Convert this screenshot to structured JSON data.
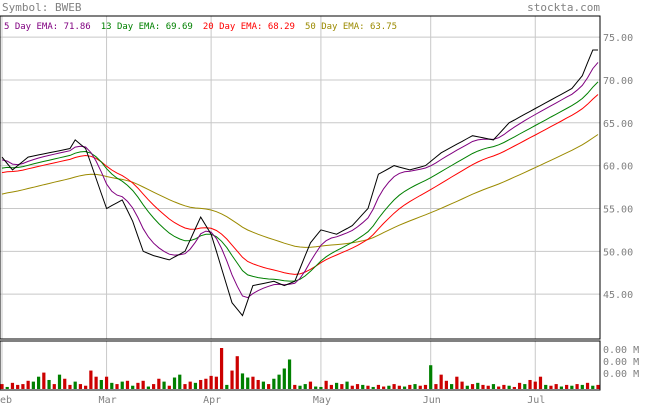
{
  "header": {
    "symbol_label": "Symbol: BWEB",
    "brand": "stockta.com"
  },
  "colors": {
    "price": "#000000",
    "ema5": "#800080",
    "ema13": "#008000",
    "ema20": "#ff0000",
    "ema50": "#9b8a00",
    "grid": "#c8c8c8",
    "vol_up": "#008000",
    "vol_down": "#cc0000"
  },
  "chart_data": {
    "type": "line",
    "legend": [
      {
        "label": "5 Day EMA: 71.86",
        "color": "#800080"
      },
      {
        "label": "13 Day EMA: 69.69",
        "color": "#008000"
      },
      {
        "label": "20 Day EMA: 68.29",
        "color": "#ff0000"
      },
      {
        "label": "50 Day EMA: 63.75",
        "color": "#9b8a00"
      }
    ],
    "y_ticks": [
      "75.00",
      "70.00",
      "65.00",
      "60.00",
      "55.00",
      "50.00",
      "45.00"
    ],
    "y_tick_values": [
      75,
      70,
      65,
      60,
      55,
      50,
      45
    ],
    "ylim": [
      40,
      77
    ],
    "x_ticks": [
      "Feb",
      "Mar",
      "Apr",
      "May",
      "Jun",
      "Jul"
    ],
    "x_tick_index": [
      0,
      20,
      40,
      61,
      82,
      102
    ],
    "n_points": 115,
    "close_keypoints": [
      [
        0,
        61.0
      ],
      [
        2,
        59.5
      ],
      [
        5,
        61.0
      ],
      [
        9,
        61.5
      ],
      [
        13,
        62.0
      ],
      [
        14,
        63.0
      ],
      [
        16,
        62.0
      ],
      [
        18,
        58.5
      ],
      [
        20,
        55.0
      ],
      [
        23,
        56.0
      ],
      [
        25,
        53.5
      ],
      [
        27,
        50.0
      ],
      [
        29,
        49.5
      ],
      [
        32,
        49.0
      ],
      [
        35,
        50.0
      ],
      [
        38,
        54.0
      ],
      [
        40,
        52.0
      ],
      [
        44,
        44.0
      ],
      [
        46,
        42.5
      ],
      [
        48,
        46.0
      ],
      [
        52,
        46.5
      ],
      [
        54,
        46.0
      ],
      [
        56,
        46.5
      ],
      [
        59,
        51.0
      ],
      [
        61,
        52.5
      ],
      [
        64,
        52.0
      ],
      [
        67,
        53.0
      ],
      [
        70,
        55.0
      ],
      [
        72,
        59.0
      ],
      [
        75,
        60.0
      ],
      [
        78,
        59.5
      ],
      [
        81,
        60.0
      ],
      [
        84,
        61.5
      ],
      [
        87,
        62.5
      ],
      [
        90,
        63.5
      ],
      [
        94,
        63.0
      ],
      [
        97,
        65.0
      ],
      [
        100,
        66.0
      ],
      [
        103,
        67.0
      ],
      [
        106,
        68.0
      ],
      [
        109,
        69.0
      ],
      [
        111,
        70.5
      ],
      [
        113,
        73.5
      ],
      [
        114,
        73.5
      ]
    ],
    "ema_start": {
      "ema5": 60.5,
      "ema13": 59.5,
      "ema20": 59.0,
      "ema50": 56.5
    },
    "volume_labels": [
      "0.00 M",
      "0.00 M",
      "0.00 M"
    ],
    "volume": [
      {
        "v": 0.12,
        "up": false
      },
      {
        "v": 0.05,
        "up": true
      },
      {
        "v": 0.15,
        "up": false
      },
      {
        "v": 0.1,
        "up": false
      },
      {
        "v": 0.12,
        "up": false
      },
      {
        "v": 0.2,
        "up": false
      },
      {
        "v": 0.18,
        "up": true
      },
      {
        "v": 0.3,
        "up": true
      },
      {
        "v": 0.4,
        "up": false
      },
      {
        "v": 0.22,
        "up": true
      },
      {
        "v": 0.12,
        "up": false
      },
      {
        "v": 0.35,
        "up": true
      },
      {
        "v": 0.25,
        "up": false
      },
      {
        "v": 0.1,
        "up": false
      },
      {
        "v": 0.18,
        "up": true
      },
      {
        "v": 0.12,
        "up": false
      },
      {
        "v": 0.08,
        "up": false
      },
      {
        "v": 0.45,
        "up": false
      },
      {
        "v": 0.3,
        "up": false
      },
      {
        "v": 0.22,
        "up": true
      },
      {
        "v": 0.3,
        "up": false
      },
      {
        "v": 0.15,
        "up": true
      },
      {
        "v": 0.12,
        "up": false
      },
      {
        "v": 0.18,
        "up": true
      },
      {
        "v": 0.2,
        "up": false
      },
      {
        "v": 0.08,
        "up": true
      },
      {
        "v": 0.15,
        "up": false
      },
      {
        "v": 0.2,
        "up": false
      },
      {
        "v": 0.06,
        "up": true
      },
      {
        "v": 0.12,
        "up": false
      },
      {
        "v": 0.25,
        "up": false
      },
      {
        "v": 0.18,
        "up": true
      },
      {
        "v": 0.08,
        "up": false
      },
      {
        "v": 0.28,
        "up": true
      },
      {
        "v": 0.35,
        "up": true
      },
      {
        "v": 0.12,
        "up": false
      },
      {
        "v": 0.18,
        "up": false
      },
      {
        "v": 0.15,
        "up": true
      },
      {
        "v": 0.22,
        "up": false
      },
      {
        "v": 0.25,
        "up": false
      },
      {
        "v": 0.32,
        "up": false
      },
      {
        "v": 0.3,
        "up": false
      },
      {
        "v": 1.0,
        "up": false
      },
      {
        "v": 0.1,
        "up": true
      },
      {
        "v": 0.45,
        "up": false
      },
      {
        "v": 0.8,
        "up": false
      },
      {
        "v": 0.38,
        "up": true
      },
      {
        "v": 0.28,
        "up": true
      },
      {
        "v": 0.3,
        "up": false
      },
      {
        "v": 0.22,
        "up": false
      },
      {
        "v": 0.18,
        "up": true
      },
      {
        "v": 0.12,
        "up": false
      },
      {
        "v": 0.25,
        "up": true
      },
      {
        "v": 0.35,
        "up": true
      },
      {
        "v": 0.5,
        "up": true
      },
      {
        "v": 0.72,
        "up": true
      },
      {
        "v": 0.1,
        "up": false
      },
      {
        "v": 0.08,
        "up": true
      },
      {
        "v": 0.12,
        "up": true
      },
      {
        "v": 0.18,
        "up": false
      },
      {
        "v": 0.06,
        "up": true
      },
      {
        "v": 0.05,
        "up": true
      },
      {
        "v": 0.2,
        "up": false
      },
      {
        "v": 0.1,
        "up": false
      },
      {
        "v": 0.15,
        "up": true
      },
      {
        "v": 0.12,
        "up": false
      },
      {
        "v": 0.18,
        "up": true
      },
      {
        "v": 0.08,
        "up": false
      },
      {
        "v": 0.12,
        "up": false
      },
      {
        "v": 0.1,
        "up": true
      },
      {
        "v": 0.08,
        "up": false
      },
      {
        "v": 0.05,
        "up": true
      },
      {
        "v": 0.1,
        "up": false
      },
      {
        "v": 0.06,
        "up": false
      },
      {
        "v": 0.08,
        "up": true
      },
      {
        "v": 0.12,
        "up": false
      },
      {
        "v": 0.08,
        "up": false
      },
      {
        "v": 0.06,
        "up": true
      },
      {
        "v": 0.1,
        "up": false
      },
      {
        "v": 0.12,
        "up": true
      },
      {
        "v": 0.08,
        "up": false
      },
      {
        "v": 0.1,
        "up": false
      },
      {
        "v": 0.58,
        "up": true
      },
      {
        "v": 0.12,
        "up": false
      },
      {
        "v": 0.35,
        "up": false
      },
      {
        "v": 0.2,
        "up": false
      },
      {
        "v": 0.12,
        "up": true
      },
      {
        "v": 0.3,
        "up": false
      },
      {
        "v": 0.18,
        "up": false
      },
      {
        "v": 0.08,
        "up": true
      },
      {
        "v": 0.12,
        "up": false
      },
      {
        "v": 0.15,
        "up": true
      },
      {
        "v": 0.1,
        "up": false
      },
      {
        "v": 0.08,
        "up": false
      },
      {
        "v": 0.12,
        "up": true
      },
      {
        "v": 0.06,
        "up": false
      },
      {
        "v": 0.1,
        "up": false
      },
      {
        "v": 0.08,
        "up": true
      },
      {
        "v": 0.05,
        "up": false
      },
      {
        "v": 0.15,
        "up": false
      },
      {
        "v": 0.12,
        "up": true
      },
      {
        "v": 0.22,
        "up": false
      },
      {
        "v": 0.18,
        "up": false
      },
      {
        "v": 0.3,
        "up": false
      },
      {
        "v": 0.1,
        "up": true
      },
      {
        "v": 0.08,
        "up": false
      },
      {
        "v": 0.12,
        "up": false
      },
      {
        "v": 0.06,
        "up": true
      },
      {
        "v": 0.1,
        "up": false
      },
      {
        "v": 0.08,
        "up": true
      },
      {
        "v": 0.12,
        "up": false
      },
      {
        "v": 0.1,
        "up": true
      },
      {
        "v": 0.15,
        "up": false
      },
      {
        "v": 0.08,
        "up": true
      },
      {
        "v": 0.1,
        "up": false
      }
    ]
  }
}
